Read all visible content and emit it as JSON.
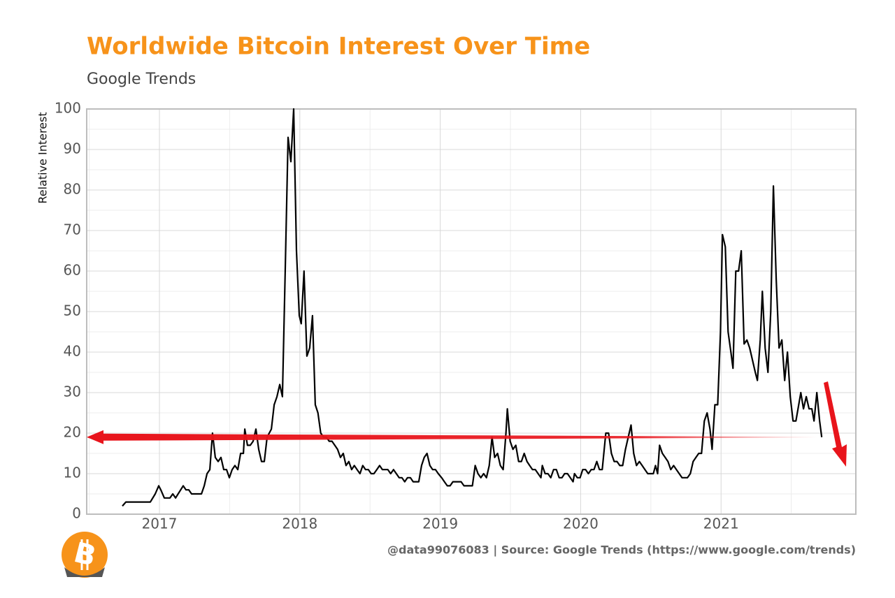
{
  "chart_data": {
    "type": "line",
    "title": "Worldwide Bitcoin Interest Over Time",
    "subtitle": "Google Trends",
    "y_label": "Relative Interest",
    "footer": "@data99076083 | Source: Google Trends (https://www.google.com/trends)",
    "logo": "B",
    "color": "#000000",
    "grid": true,
    "xlim": [
      2016.482,
      2021.96
    ],
    "xticks": [
      2017,
      2018,
      2019,
      2020,
      2021
    ],
    "ylim": [
      0,
      100
    ],
    "yticks": [
      0,
      10,
      20,
      30,
      40,
      50,
      60,
      70,
      80,
      90,
      100
    ],
    "reference_line": {
      "value": 19,
      "color": "#e8141b"
    },
    "x": [
      2016.736,
      2016.761,
      2016.935,
      2016.97,
      2016.995,
      2017.01,
      2017.035,
      2017.075,
      2017.095,
      2017.115,
      2017.169,
      2017.189,
      2017.209,
      2017.229,
      2017.299,
      2017.319,
      2017.339,
      2017.359,
      2017.378,
      2017.398,
      2017.418,
      2017.438,
      2017.458,
      2017.478,
      2017.498,
      2017.518,
      2017.538,
      2017.558,
      2017.578,
      2017.598,
      2017.608,
      2017.627,
      2017.647,
      2017.667,
      2017.687,
      2017.707,
      2017.727,
      2017.747,
      2017.767,
      2017.797,
      2017.817,
      2017.837,
      2017.857,
      2017.876,
      2017.896,
      2017.916,
      2017.936,
      2017.956,
      2017.976,
      2017.996,
      2018.01,
      2018.03,
      2018.05,
      2018.07,
      2018.09,
      2018.11,
      2018.129,
      2018.149,
      2018.169,
      2018.189,
      2018.209,
      2018.229,
      2018.249,
      2018.269,
      2018.289,
      2018.309,
      2018.329,
      2018.349,
      2018.369,
      2018.388,
      2018.408,
      2018.428,
      2018.448,
      2018.468,
      2018.488,
      2018.508,
      2018.528,
      2018.548,
      2018.568,
      2018.588,
      2018.608,
      2018.627,
      2018.647,
      2018.667,
      2018.687,
      2018.707,
      2018.727,
      2018.747,
      2018.767,
      2018.787,
      2018.807,
      2018.827,
      2018.847,
      2018.867,
      2018.886,
      2018.906,
      2018.926,
      2018.946,
      2018.966,
      2018.986,
      2019.01,
      2019.03,
      2019.05,
      2019.07,
      2019.09,
      2019.11,
      2019.129,
      2019.149,
      2019.169,
      2019.189,
      2019.209,
      2019.229,
      2019.249,
      2019.269,
      2019.289,
      2019.309,
      2019.329,
      2019.349,
      2019.369,
      2019.388,
      2019.408,
      2019.428,
      2019.448,
      2019.468,
      2019.478,
      2019.498,
      2019.518,
      2019.538,
      2019.558,
      2019.578,
      2019.598,
      2019.618,
      2019.637,
      2019.657,
      2019.677,
      2019.697,
      2019.717,
      2019.727,
      2019.747,
      2019.767,
      2019.787,
      2019.807,
      2019.827,
      2019.847,
      2019.867,
      2019.886,
      2019.906,
      2019.926,
      2019.946,
      2019.956,
      2019.976,
      2019.996,
      2020.015,
      2020.035,
      2020.055,
      2020.075,
      2020.095,
      2020.115,
      2020.134,
      2020.154,
      2020.179,
      2020.199,
      2020.219,
      2020.239,
      2020.259,
      2020.279,
      2020.299,
      2020.319,
      2020.339,
      2020.359,
      2020.378,
      2020.398,
      2020.418,
      2020.438,
      2020.458,
      2020.478,
      2020.498,
      2020.518,
      2020.533,
      2020.548,
      2020.562,
      2020.582,
      2020.602,
      2020.622,
      2020.642,
      2020.662,
      2020.682,
      2020.702,
      2020.722,
      2020.742,
      2020.761,
      2020.781,
      2020.801,
      2020.821,
      2020.841,
      2020.861,
      2020.881,
      2020.901,
      2020.921,
      2020.936,
      2020.956,
      2020.976,
      2020.996,
      2021.01,
      2021.03,
      2021.05,
      2021.07,
      2021.085,
      2021.105,
      2021.125,
      2021.144,
      2021.164,
      2021.184,
      2021.204,
      2021.224,
      2021.244,
      2021.259,
      2021.279,
      2021.294,
      2021.314,
      2021.334,
      2021.354,
      2021.373,
      2021.393,
      2021.413,
      2021.433,
      2021.453,
      2021.473,
      2021.493,
      2021.513,
      2021.533,
      2021.553,
      2021.568,
      2021.587,
      2021.607,
      2021.627,
      2021.647,
      2021.662,
      2021.682,
      2021.702,
      2021.717
    ],
    "values": [
      2,
      3,
      3,
      5,
      7,
      6,
      4,
      4,
      5,
      4,
      7,
      6,
      6,
      5,
      5,
      7,
      10,
      11,
      20,
      14,
      13,
      14,
      11,
      11,
      9,
      11,
      12,
      11,
      15,
      15,
      21,
      17,
      17,
      18,
      21,
      16,
      13,
      13,
      19,
      21,
      27,
      29,
      32,
      29,
      60,
      93,
      87,
      100,
      65,
      49,
      47,
      60,
      39,
      41,
      49,
      27,
      25,
      20,
      19,
      19,
      18,
      18,
      17,
      16,
      14,
      15,
      12,
      13,
      11,
      12,
      11,
      10,
      12,
      11,
      11,
      10,
      10,
      11,
      12,
      11,
      11,
      11,
      10,
      11,
      10,
      9,
      9,
      8,
      9,
      9,
      8,
      8,
      8,
      12,
      14,
      15,
      12,
      11,
      11,
      10,
      9,
      8,
      7,
      7,
      8,
      8,
      8,
      8,
      7,
      7,
      7,
      7,
      12,
      10,
      9,
      10,
      9,
      12,
      19,
      14,
      15,
      12,
      11,
      20,
      26,
      18,
      16,
      17,
      13,
      13,
      15,
      13,
      12,
      11,
      11,
      10,
      9,
      12,
      10,
      10,
      9,
      11,
      11,
      9,
      9,
      10,
      10,
      9,
      8,
      10,
      9,
      9,
      11,
      11,
      10,
      11,
      11,
      13,
      11,
      11,
      20,
      20,
      15,
      13,
      13,
      12,
      12,
      16,
      19,
      22,
      15,
      12,
      13,
      12,
      11,
      10,
      10,
      10,
      12,
      10,
      17,
      15,
      14,
      13,
      11,
      12,
      11,
      10,
      9,
      9,
      9,
      10,
      13,
      14,
      15,
      15,
      23,
      25,
      21,
      16,
      27,
      27,
      45,
      69,
      66,
      45,
      40,
      36,
      60,
      60,
      65,
      42,
      43,
      41,
      38,
      35,
      33,
      43,
      55,
      41,
      35,
      50,
      81,
      58,
      41,
      43,
      33,
      40,
      29,
      23,
      23,
      27,
      30,
      26,
      29,
      26,
      26,
      23,
      30,
      23,
      19
    ]
  }
}
